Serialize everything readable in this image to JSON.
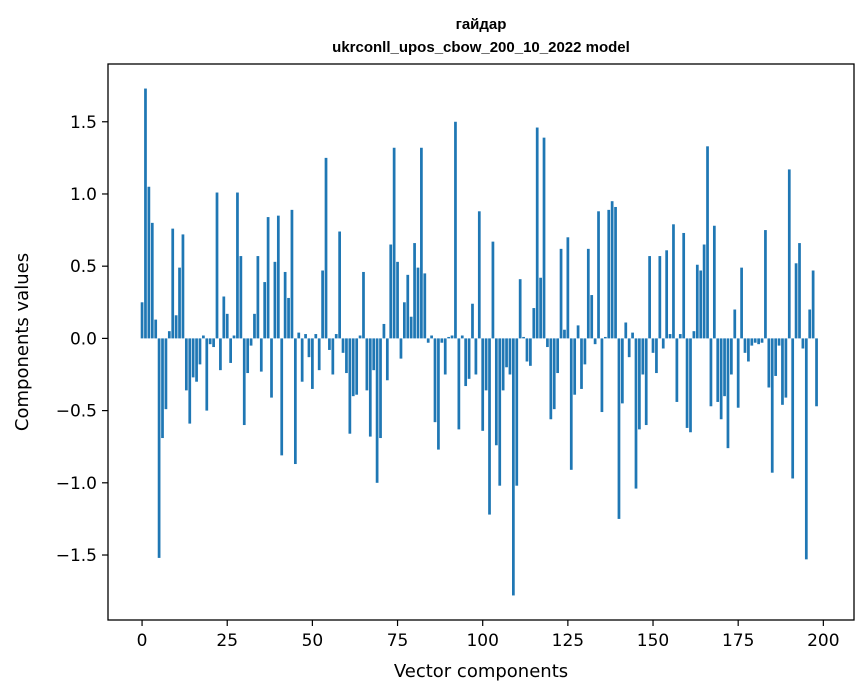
{
  "chart_data": {
    "type": "bar",
    "title_lines": [
      "гайдар",
      "ukrconll_upos_cbow_200_10_2022 model"
    ],
    "xlabel": "Vector components",
    "ylabel": "Components values",
    "xlim": [
      -10,
      209
    ],
    "ylim": [
      -1.95,
      1.9
    ],
    "x_ticks": [
      0,
      25,
      50,
      75,
      100,
      125,
      150,
      175,
      200
    ],
    "x_tick_labels": [
      "0",
      "25",
      "50",
      "75",
      "100",
      "125",
      "150",
      "175",
      "200"
    ],
    "y_ticks": [
      -1.5,
      -1.0,
      -0.5,
      0.0,
      0.5,
      1.0,
      1.5
    ],
    "y_tick_labels": [
      "−1.5",
      "−1.0",
      "−0.5",
      "0.0",
      "0.5",
      "1.0",
      "1.5"
    ],
    "bar_color": "#1f77b4",
    "grid": false,
    "values": [
      0.25,
      1.73,
      1.05,
      0.8,
      0.13,
      -1.52,
      -0.69,
      -0.49,
      0.05,
      0.76,
      0.16,
      0.49,
      0.72,
      -0.36,
      -0.59,
      -0.27,
      -0.3,
      -0.18,
      0.02,
      -0.5,
      -0.04,
      -0.06,
      1.01,
      -0.22,
      0.29,
      0.17,
      -0.17,
      0.02,
      1.01,
      0.57,
      -0.6,
      -0.24,
      -0.05,
      0.17,
      0.57,
      -0.23,
      0.39,
      0.84,
      -0.41,
      0.53,
      0.85,
      -0.81,
      0.46,
      0.28,
      0.89,
      -0.87,
      0.04,
      -0.3,
      0.03,
      -0.13,
      -0.35,
      0.03,
      -0.22,
      0.47,
      1.25,
      -0.08,
      -0.25,
      0.03,
      0.74,
      -0.1,
      -0.24,
      -0.66,
      -0.4,
      -0.39,
      0.02,
      0.46,
      -0.36,
      -0.68,
      -0.22,
      -1.0,
      -0.69,
      0.1,
      -0.29,
      0.65,
      1.32,
      0.53,
      -0.14,
      0.25,
      0.44,
      0.15,
      0.66,
      0.49,
      1.32,
      0.45,
      -0.03,
      0.02,
      -0.58,
      -0.77,
      -0.03,
      -0.25,
      0.01,
      0.02,
      1.5,
      -0.63,
      0.02,
      -0.33,
      -0.28,
      0.24,
      -0.25,
      0.88,
      -0.64,
      -0.36,
      -1.22,
      0.67,
      -0.74,
      -1.02,
      -0.36,
      -0.2,
      -0.25,
      -1.78,
      -1.02,
      0.41,
      0.01,
      -0.16,
      -0.19,
      0.21,
      1.46,
      0.42,
      1.39,
      -0.06,
      -0.56,
      -0.49,
      -0.24,
      0.62,
      0.06,
      0.7,
      -0.91,
      -0.39,
      0.09,
      -0.35,
      -0.18,
      0.62,
      0.3,
      -0.04,
      0.88,
      -0.51,
      0.01,
      0.89,
      0.95,
      0.91,
      -1.25,
      -0.45,
      0.11,
      -0.13,
      0.04,
      -1.04,
      -0.63,
      -0.25,
      -0.6,
      0.57,
      -0.1,
      -0.24,
      0.57,
      -0.07,
      0.61,
      0.03,
      0.79,
      -0.44,
      0.03,
      0.73,
      -0.62,
      -0.65,
      0.05,
      0.51,
      0.47,
      0.65,
      1.33,
      -0.47,
      0.78,
      -0.44,
      -0.56,
      -0.4,
      -0.76,
      -0.25,
      0.2,
      -0.48,
      0.49,
      -0.1,
      -0.16,
      -0.05,
      -0.03,
      -0.04,
      -0.03,
      0.75,
      -0.34,
      -0.93,
      -0.26,
      -0.05,
      -0.46,
      -0.41,
      1.17,
      -0.97,
      0.52,
      0.66,
      -0.07,
      -1.53,
      0.2,
      0.47,
      -0.47
    ]
  }
}
